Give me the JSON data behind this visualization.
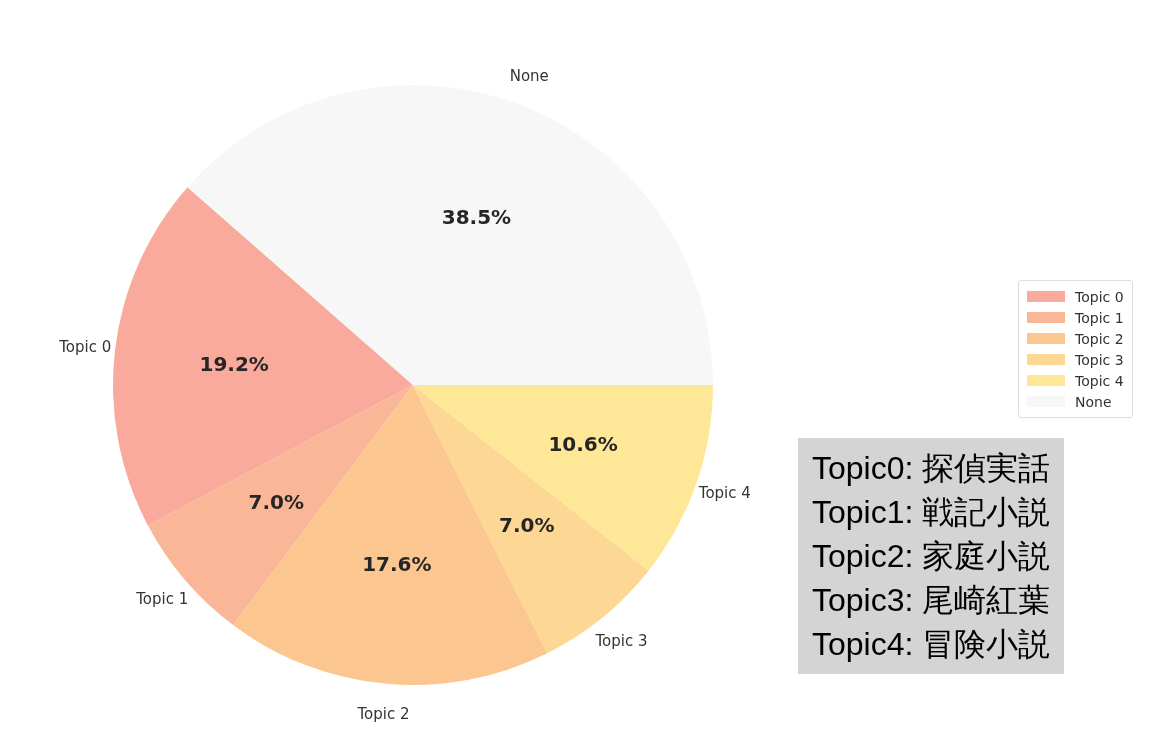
{
  "chart_data": {
    "type": "pie",
    "categories": [
      "Topic 0",
      "Topic 1",
      "Topic 2",
      "Topic 3",
      "Topic 4",
      "None"
    ],
    "values": [
      19.2,
      7.0,
      17.6,
      7.0,
      10.6,
      38.5
    ],
    "colors": [
      "#f9aa9c",
      "#f9b797",
      "#fcc690",
      "#fdd794",
      "#fee898",
      "#f7f7f7"
    ],
    "value_labels": [
      "19.2%",
      "7.0%",
      "17.6%",
      "7.0%",
      "10.6%",
      "38.5%"
    ],
    "legend": "right",
    "annotations": [
      "Topic0: 探偵実話",
      "Topic1: 戦記小説",
      "Topic2: 家庭小説",
      "Topic3: 尾崎紅葉",
      "Topic4: 冒険小説"
    ]
  }
}
